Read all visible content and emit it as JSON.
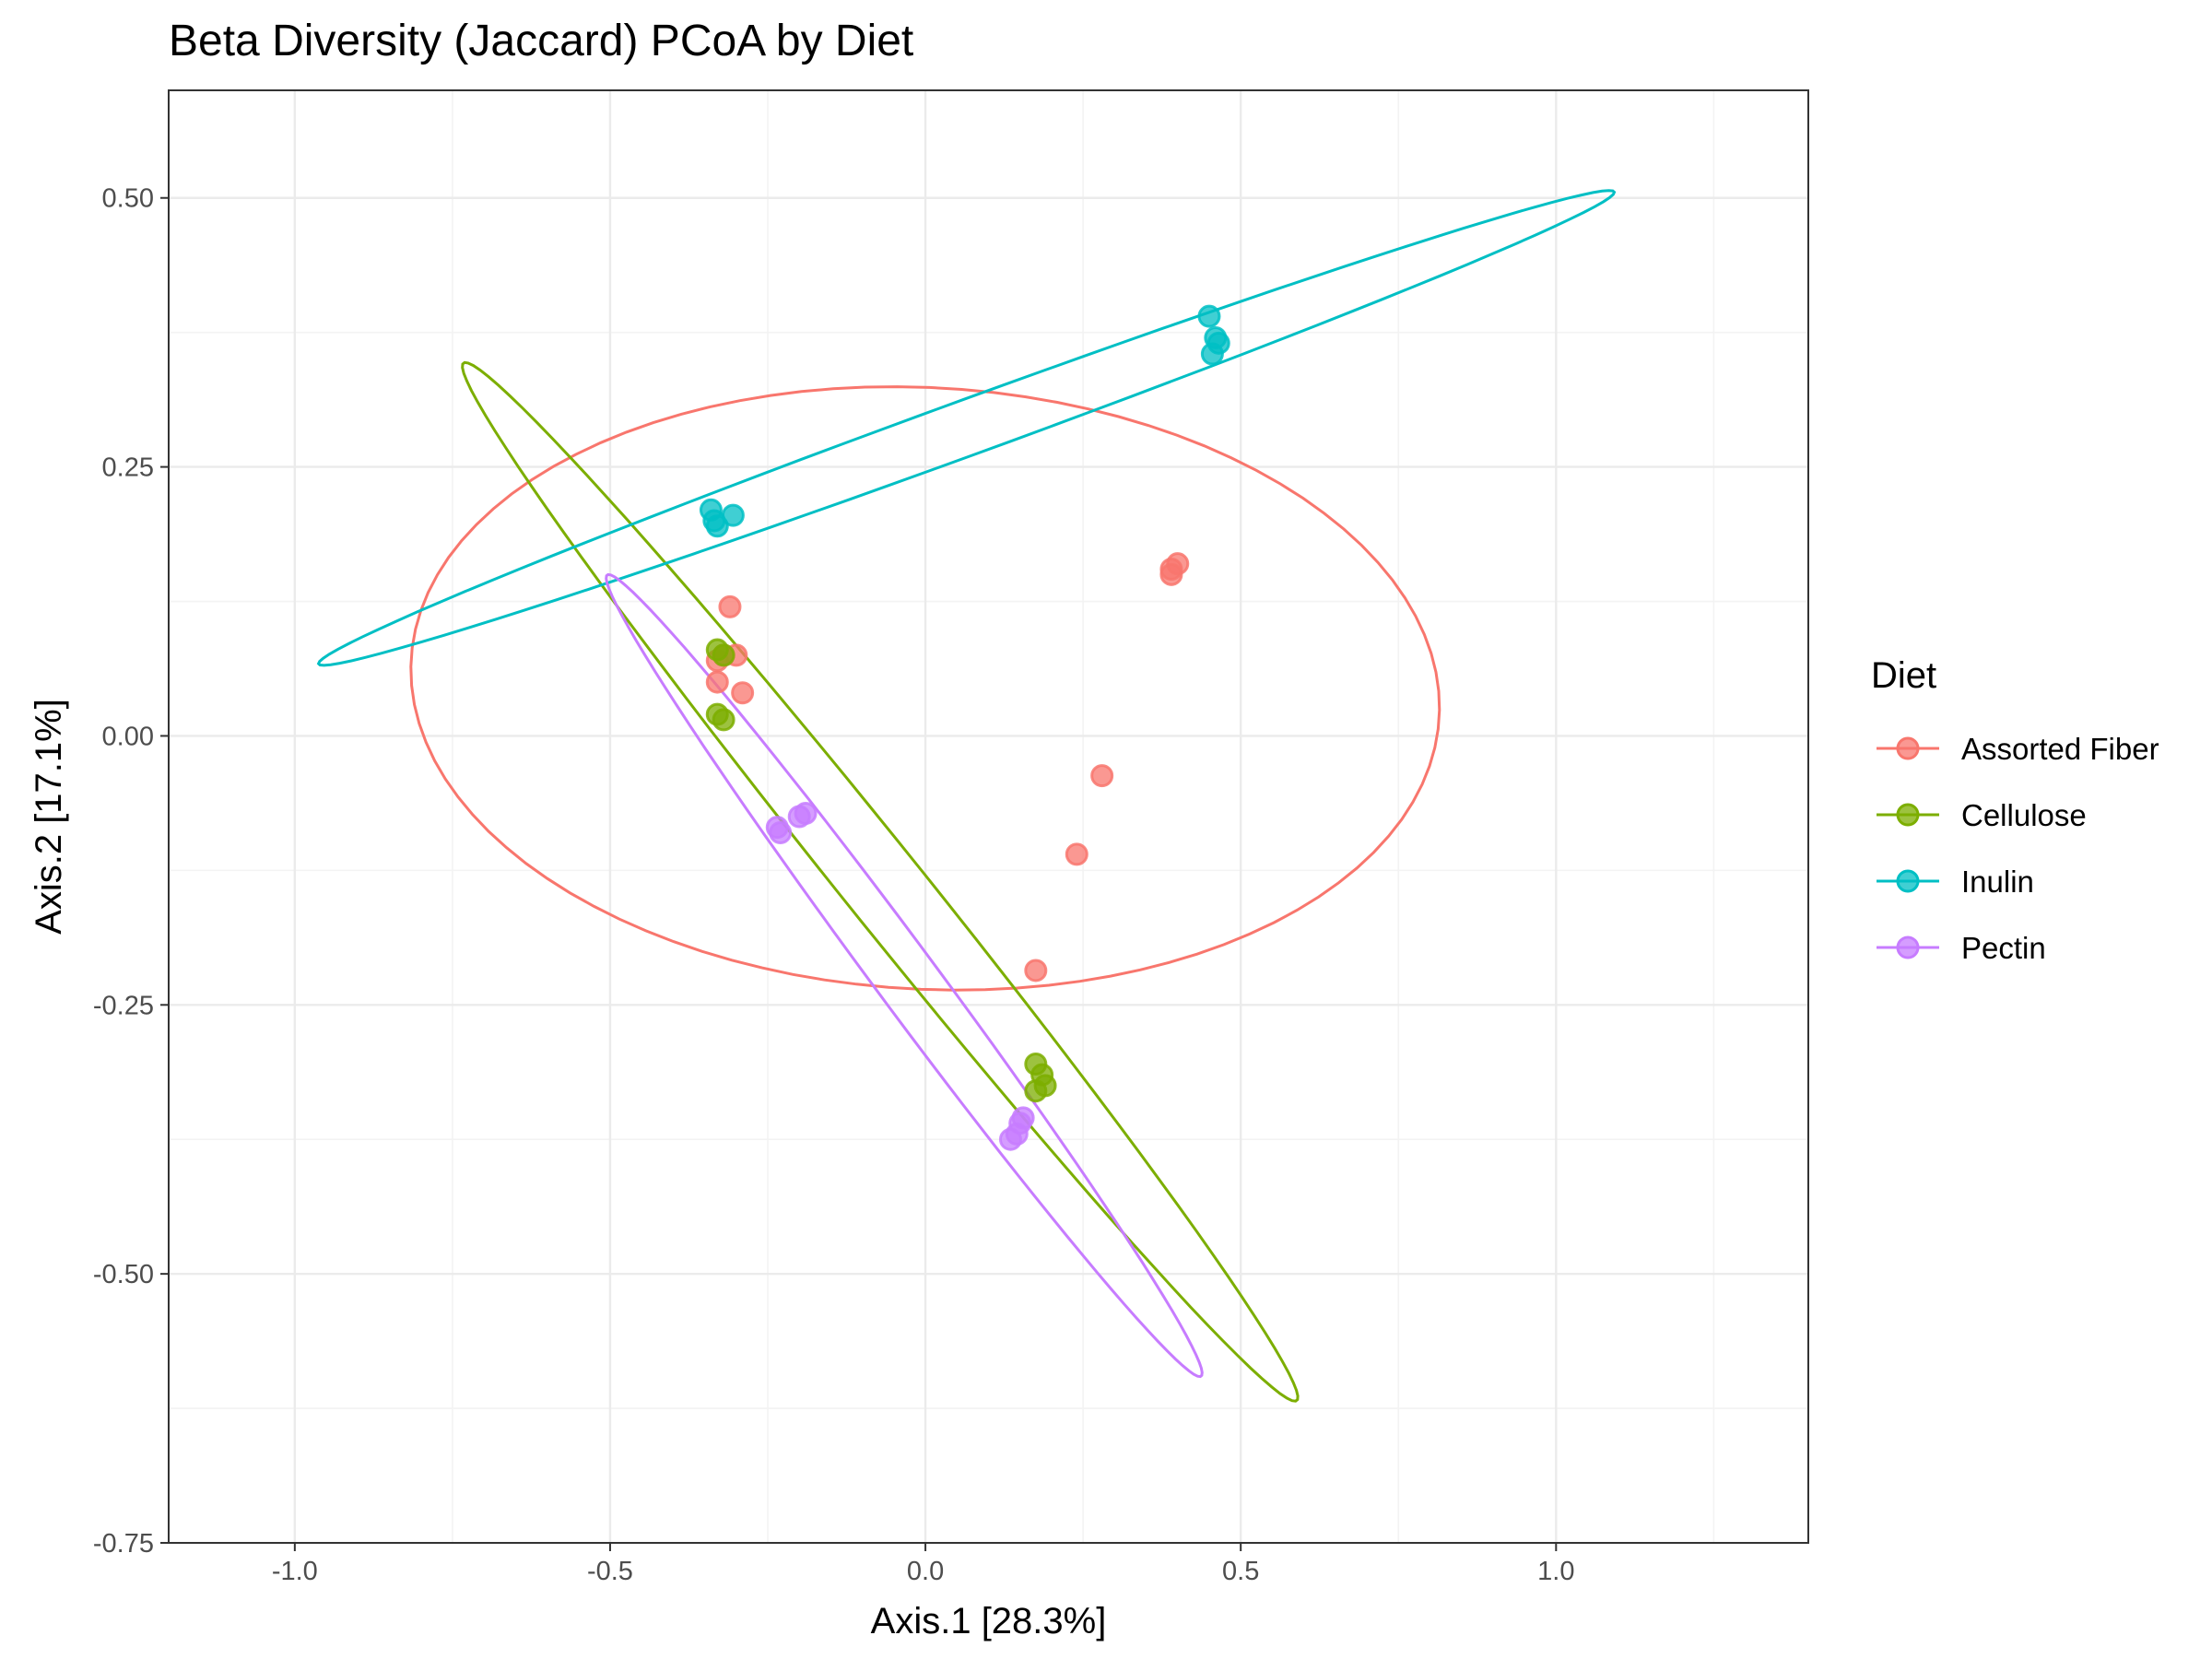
{
  "chart_data": {
    "type": "scatter",
    "title": "Beta Diversity (Jaccard) PCoA by Diet",
    "xlabel": "Axis.1   [28.3%]",
    "ylabel": "Axis.2   [17.1%]",
    "xlim": [
      -1.2,
      1.4
    ],
    "ylim": [
      -0.75,
      0.6
    ],
    "x_ticks": [
      -1.0,
      -0.5,
      0.0,
      0.5,
      1.0
    ],
    "x_tick_labels": [
      "-1.0",
      "-0.5",
      "0.0",
      "0.5",
      "1.0"
    ],
    "y_ticks": [
      -0.75,
      -0.5,
      -0.25,
      0.0,
      0.25,
      0.5
    ],
    "y_tick_labels": [
      "-0.75",
      "-0.50",
      "-0.25",
      "0.00",
      "0.25",
      "0.50"
    ],
    "grid": true,
    "legend": {
      "title": "Diet",
      "position": "right"
    },
    "ellipses": true,
    "series": [
      {
        "name": "Assorted Fiber",
        "color": "#F8766D",
        "points": [
          [
            -0.31,
            0.12
          ],
          [
            -0.32,
            0.075
          ],
          [
            -0.3,
            0.075
          ],
          [
            -0.33,
            0.07
          ],
          [
            -0.33,
            0.05
          ],
          [
            -0.29,
            0.04
          ],
          [
            0.4,
            0.16
          ],
          [
            0.39,
            0.15
          ],
          [
            0.39,
            0.155
          ],
          [
            0.28,
            -0.037
          ],
          [
            0.24,
            -0.11
          ],
          [
            0.175,
            -0.218
          ]
        ]
      },
      {
        "name": "Cellulose",
        "color": "#7CAE00",
        "points": [
          [
            -0.33,
            0.08
          ],
          [
            -0.32,
            0.075
          ],
          [
            -0.33,
            0.02
          ],
          [
            -0.32,
            0.015
          ],
          [
            0.175,
            -0.305
          ],
          [
            0.185,
            -0.315
          ],
          [
            0.19,
            -0.325
          ],
          [
            0.175,
            -0.33
          ]
        ]
      },
      {
        "name": "Inulin",
        "color": "#00BFC4",
        "points": [
          [
            -0.34,
            0.21
          ],
          [
            -0.335,
            0.2
          ],
          [
            -0.33,
            0.195
          ],
          [
            -0.305,
            0.205
          ],
          [
            0.45,
            0.39
          ],
          [
            0.46,
            0.37
          ],
          [
            0.465,
            0.365
          ],
          [
            0.455,
            0.355
          ]
        ]
      },
      {
        "name": "Pectin",
        "color": "#C77CFF",
        "points": [
          [
            -0.19,
            -0.072
          ],
          [
            -0.2,
            -0.075
          ],
          [
            -0.235,
            -0.085
          ],
          [
            -0.23,
            -0.09
          ],
          [
            0.155,
            -0.355
          ],
          [
            0.15,
            -0.36
          ],
          [
            0.145,
            -0.37
          ],
          [
            0.135,
            -0.375
          ]
        ]
      }
    ]
  }
}
